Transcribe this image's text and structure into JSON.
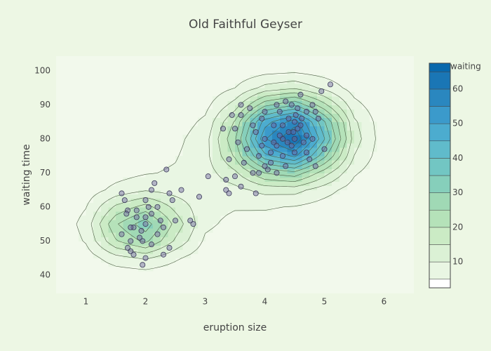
{
  "chart_data": {
    "type": "contour",
    "title": "Old Faithful Geyser",
    "xlabel": "eruption size",
    "ylabel": "waiting time",
    "xlim": [
      0.5,
      6.5
    ],
    "ylim": [
      34.6,
      104.3
    ],
    "xticks": [
      1,
      2,
      3,
      4,
      5,
      6
    ],
    "yticks": [
      40,
      50,
      60,
      70,
      80,
      90,
      100
    ],
    "z_x": [
      0.5,
      1,
      1.5,
      2,
      2.5,
      3,
      3.5,
      4,
      4.5,
      5,
      5.5,
      6,
      6.5
    ],
    "z_y": [
      35,
      40,
      45,
      50,
      55,
      60,
      65,
      70,
      75,
      80,
      85,
      90,
      95,
      100,
      105
    ],
    "z": [
      [
        0,
        0.1,
        0.2,
        0.3,
        0.2,
        0.1,
        0.1,
        0.1,
        0.1,
        0,
        0,
        0,
        0
      ],
      [
        0.1,
        0.5,
        1.7,
        2.3,
        1.4,
        0.6,
        0.4,
        0.3,
        0.2,
        0.1,
        0.1,
        0,
        0
      ],
      [
        0.3,
        2.3,
        8,
        10.8,
        5.9,
        1.8,
        1,
        0.8,
        0.5,
        0.3,
        0.2,
        0.1,
        0
      ],
      [
        0.7,
        5.5,
        19.4,
        26.3,
        14.2,
        4.1,
        2.1,
        1.5,
        1.1,
        0.6,
        0.3,
        0.1,
        0
      ],
      [
        0.9,
        6.9,
        24.3,
        33.1,
        18.3,
        6.1,
        3.5,
        3,
        2.2,
        1.3,
        0.7,
        0.2,
        0.1
      ],
      [
        0.8,
        4.8,
        16,
        22.1,
        13.5,
        6.5,
        5.4,
        5.5,
        4.7,
        2.8,
        1.2,
        0.4,
        0.1
      ],
      [
        0.6,
        2.3,
        6.5,
        9.4,
        7.9,
        6.8,
        8.4,
        11.7,
        11.9,
        7.1,
        2.6,
        0.6,
        0.1
      ],
      [
        0.5,
        1.3,
        2.9,
        4.6,
        5.6,
        7.6,
        13.9,
        25.1,
        28.4,
        17.3,
        5.7,
        1.1,
        0.2
      ],
      [
        0.4,
        0.9,
        1.8,
        3.1,
        4.6,
        8.2,
        20.8,
        43.3,
        51.2,
        31.4,
        9.9,
        1.7,
        0.2
      ],
      [
        0.3,
        0.7,
        1.3,
        2.3,
        3.6,
        7.9,
        24.3,
        54.4,
        65.5,
        40.3,
        12.6,
        2,
        0.2
      ],
      [
        0.2,
        0.4,
        0.8,
        1.4,
        2.3,
        6,
        20.6,
        47.6,
        57.7,
        35.5,
        11,
        1.7,
        0.1
      ],
      [
        0.1,
        0.2,
        0.4,
        0.7,
        1.2,
        3.4,
        12.2,
        28.5,
        34.5,
        21.3,
        6.6,
        1.1,
        0.1
      ],
      [
        0,
        0.1,
        0.2,
        0.3,
        0.5,
        1.4,
        5,
        11.6,
        14.1,
        8.7,
        2.7,
        0.4,
        0
      ],
      [
        0,
        0,
        0.1,
        0.1,
        0.1,
        0.4,
        1.5,
        3.2,
        3.9,
        2.5,
        0.7,
        0.1,
        0
      ],
      [
        0,
        0,
        0,
        0,
        0,
        0.1,
        0.2,
        0.6,
        0.7,
        0.4,
        0.1,
        0,
        0
      ]
    ],
    "levels": [
      5,
      10,
      15,
      20,
      25,
      30,
      35,
      40,
      45,
      50,
      55,
      60,
      65
    ],
    "line_color": "#4d5e44",
    "colorbar": {
      "title": "waiting",
      "range": [
        2.5,
        67.5
      ],
      "ticks": [
        10,
        20,
        30,
        40,
        50,
        60
      ],
      "colors": [
        "#ffffff",
        "#e9f6e3",
        "#dbf1d5",
        "#cbebc5",
        "#b5e2b9",
        "#a0d9b5",
        "#86cfbb",
        "#72c6c3",
        "#60bbcb",
        "#4caccf",
        "#3b9acb",
        "#2a87bf",
        "#1a76b5",
        "#0868ac"
      ]
    },
    "points": {
      "color": "#6e64a0",
      "x": [
        1.8,
        1.75,
        2.0,
        1.6,
        2.2,
        1.95,
        1.7,
        2.1,
        1.85,
        2.3,
        1.65,
        2.0,
        2.4,
        1.9,
        2.05,
        1.8,
        2.25,
        1.75,
        2.1,
        2.5,
        2.0,
        1.7,
        2.15,
        1.95,
        2.35,
        2.6,
        2.75,
        2.9,
        2.8,
        2.4,
        1.6,
        2.3,
        1.85,
        2.2,
        1.68,
        1.93,
        2.45,
        2.1,
        1.75,
        2.0,
        4.4,
        4.5,
        4.3,
        4.6,
        4.2,
        3.9,
        4.7,
        4.1,
        4.8,
        4.0,
        3.8,
        4.5,
        4.35,
        4.65,
        3.6,
        3.5,
        4.9,
        5.1,
        4.95,
        4.25,
        4.55,
        4.45,
        3.7,
        4.05,
        3.95,
        4.15,
        4.75,
        4.85,
        5.0,
        4.6,
        4.3,
        3.85,
        3.55,
        3.4,
        3.3,
        3.65,
        4.4,
        4.5,
        4.7,
        4.2,
        3.9,
        4.0,
        4.1,
        4.55,
        4.35,
        4.8,
        3.75,
        3.6,
        4.62,
        4.45,
        3.45,
        4.25,
        4.15,
        4.0,
        4.85,
        3.8,
        3.6,
        3.5,
        3.35,
        3.4,
        3.85,
        3.05,
        3.35,
        4.3,
        4.48,
        4.52,
        4.38,
        4.7,
        4.2,
        3.95
      ],
      "y": [
        54,
        47,
        55,
        52,
        60,
        50,
        48,
        58,
        59,
        54,
        62,
        45,
        64,
        51,
        60,
        46,
        56,
        54,
        49,
        56,
        62,
        59,
        67,
        43,
        71,
        65,
        56,
        63,
        55,
        48,
        64,
        46,
        57,
        52,
        58,
        53,
        62,
        65,
        50,
        57,
        82,
        85,
        80,
        84,
        78,
        75,
        88,
        73,
        90,
        80,
        84,
        76,
        91,
        79,
        87,
        83,
        86,
        96,
        94,
        88,
        83,
        78,
        77,
        71,
        86,
        84,
        74,
        72,
        77,
        93,
        75,
        82,
        79,
        74,
        83,
        73,
        86,
        80,
        81,
        90,
        70,
        72,
        76,
        89,
        72,
        80,
        89,
        90,
        86,
        90,
        87,
        81,
        79,
        88,
        88,
        70,
        66,
        69,
        65,
        64,
        64,
        69,
        68,
        84,
        82,
        87,
        79,
        76,
        70,
        78
      ]
    }
  }
}
